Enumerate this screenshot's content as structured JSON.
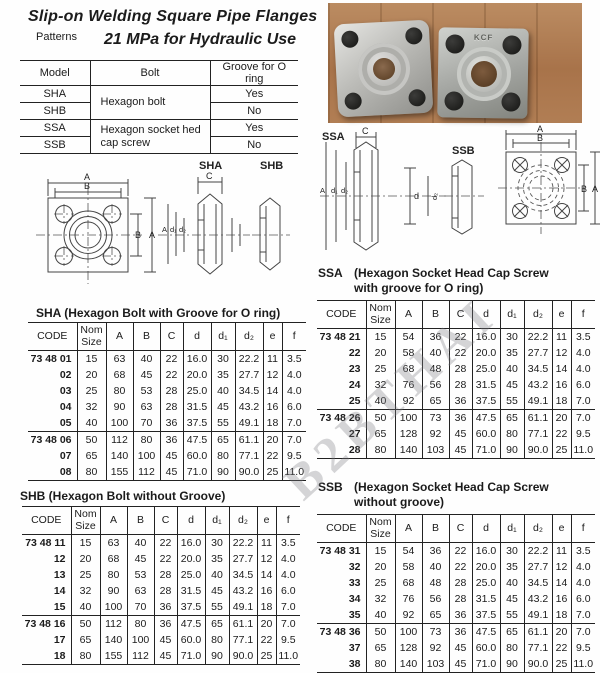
{
  "header": {
    "title_line1": "Slip-on Welding Square Pipe Flanges",
    "patterns_label": "Patterns",
    "title_line2": "21 MPa for Hydraulic Use"
  },
  "patterns_table": {
    "col_model": "Model",
    "col_bolt": "Bolt",
    "col_groove": "Groove for O ring",
    "models": [
      "SHA",
      "SHB",
      "SSA",
      "SSB"
    ],
    "bolt_hexagon": "Hexagon bolt",
    "bolt_socket_line1": "Hexagon socket hed",
    "bolt_socket_line2": "cap screw",
    "groove": [
      "Yes",
      "No",
      "Yes",
      "No"
    ]
  },
  "photo": {
    "marking": "KCF"
  },
  "diagram_left": {
    "sha": "SHA",
    "shb": "SHB",
    "a": "A",
    "b": "B",
    "c": "C",
    "b_right": "B",
    "a_right": "A",
    "sec_a": "A",
    "sec_d1": "d₁",
    "sec_d2": "d₂"
  },
  "diagram_right": {
    "ssa": "SSA",
    "ssb": "SSB",
    "c": "C",
    "a": "A",
    "d1": "d₁",
    "d2": "d₂",
    "d": "d",
    "d2r": "d₂",
    "fa": "A",
    "fb": "B",
    "fb_right": "B",
    "fa_right": "A"
  },
  "table_header": [
    "CODE",
    "Nom Size",
    "A",
    "B",
    "C",
    "d",
    "d₁",
    "d₂",
    "e",
    "f"
  ],
  "sha_table": {
    "title": "SHA (Hexagon Bolt with Groove for O ring)",
    "rows": [
      [
        "73 48 01",
        "15",
        "63",
        "40",
        "22",
        "16.0",
        "30",
        "22.2",
        "11",
        "3.5"
      ],
      [
        "02",
        "20",
        "68",
        "45",
        "22",
        "20.0",
        "35",
        "27.7",
        "12",
        "4.0"
      ],
      [
        "03",
        "25",
        "80",
        "53",
        "28",
        "25.0",
        "40",
        "34.5",
        "14",
        "4.0"
      ],
      [
        "04",
        "32",
        "90",
        "63",
        "28",
        "31.5",
        "45",
        "43.2",
        "16",
        "6.0"
      ],
      [
        "05",
        "40",
        "100",
        "70",
        "36",
        "37.5",
        "55",
        "49.1",
        "18",
        "7.0"
      ],
      [
        "73 48 06",
        "50",
        "112",
        "80",
        "36",
        "47.5",
        "65",
        "61.1",
        "20",
        "7.0"
      ],
      [
        "07",
        "65",
        "140",
        "100",
        "45",
        "60.0",
        "80",
        "77.1",
        "22",
        "9.5"
      ],
      [
        "08",
        "80",
        "155",
        "112",
        "45",
        "71.0",
        "90",
        "90.0",
        "25",
        "11.0"
      ]
    ]
  },
  "ssa_table": {
    "label": "SSA",
    "title_line1": "(Hexagon Socket Head Cap Screw",
    "title_line2": "with groove for O ring)",
    "rows": [
      [
        "73 48 21",
        "15",
        "54",
        "36",
        "22",
        "16.0",
        "30",
        "22.2",
        "11",
        "3.5"
      ],
      [
        "22",
        "20",
        "58",
        "40",
        "22",
        "20.0",
        "35",
        "27.7",
        "12",
        "4.0"
      ],
      [
        "23",
        "25",
        "68",
        "48",
        "28",
        "25.0",
        "40",
        "34.5",
        "14",
        "4.0"
      ],
      [
        "24",
        "32",
        "76",
        "56",
        "28",
        "31.5",
        "45",
        "43.2",
        "16",
        "6.0"
      ],
      [
        "25",
        "40",
        "92",
        "65",
        "36",
        "37.5",
        "55",
        "49.1",
        "18",
        "7.0"
      ],
      [
        "73 48 26",
        "50",
        "100",
        "73",
        "36",
        "47.5",
        "65",
        "61.1",
        "20",
        "7.0"
      ],
      [
        "27",
        "65",
        "128",
        "92",
        "45",
        "60.0",
        "80",
        "77.1",
        "22",
        "9.5"
      ],
      [
        "28",
        "80",
        "140",
        "103",
        "45",
        "71.0",
        "90",
        "90.0",
        "25",
        "11.0"
      ]
    ]
  },
  "shb_table": {
    "title": "SHB (Hexagon Bolt without Groove)",
    "rows": [
      [
        "73 48 11",
        "15",
        "63",
        "40",
        "22",
        "16.0",
        "30",
        "22.2",
        "11",
        "3.5"
      ],
      [
        "12",
        "20",
        "68",
        "45",
        "22",
        "20.0",
        "35",
        "27.7",
        "12",
        "4.0"
      ],
      [
        "13",
        "25",
        "80",
        "53",
        "28",
        "25.0",
        "40",
        "34.5",
        "14",
        "4.0"
      ],
      [
        "14",
        "32",
        "90",
        "63",
        "28",
        "31.5",
        "45",
        "43.2",
        "16",
        "6.0"
      ],
      [
        "15",
        "40",
        "100",
        "70",
        "36",
        "37.5",
        "55",
        "49.1",
        "18",
        "7.0"
      ],
      [
        "73 48 16",
        "50",
        "112",
        "80",
        "36",
        "47.5",
        "65",
        "61.1",
        "20",
        "7.0"
      ],
      [
        "17",
        "65",
        "140",
        "100",
        "45",
        "60.0",
        "80",
        "77.1",
        "22",
        "9.5"
      ],
      [
        "18",
        "80",
        "155",
        "112",
        "45",
        "71.0",
        "90",
        "90.0",
        "25",
        "11.0"
      ]
    ]
  },
  "ssb_table": {
    "label": "SSB",
    "title_line1": "(Hexagon Socket Head Cap Screw",
    "title_line2": "without groove)",
    "rows": [
      [
        "73 48 31",
        "15",
        "54",
        "36",
        "22",
        "16.0",
        "30",
        "22.2",
        "11",
        "3.5"
      ],
      [
        "32",
        "20",
        "58",
        "40",
        "22",
        "20.0",
        "35",
        "27.7",
        "12",
        "4.0"
      ],
      [
        "33",
        "25",
        "68",
        "48",
        "28",
        "25.0",
        "40",
        "34.5",
        "14",
        "4.0"
      ],
      [
        "34",
        "32",
        "76",
        "56",
        "28",
        "31.5",
        "45",
        "43.2",
        "16",
        "6.0"
      ],
      [
        "35",
        "40",
        "92",
        "65",
        "36",
        "37.5",
        "55",
        "49.1",
        "18",
        "7.0"
      ],
      [
        "73 48 36",
        "50",
        "100",
        "73",
        "36",
        "47.5",
        "65",
        "61.1",
        "20",
        "7.0"
      ],
      [
        "37",
        "65",
        "128",
        "92",
        "45",
        "60.0",
        "80",
        "77.1",
        "22",
        "9.5"
      ],
      [
        "38",
        "80",
        "140",
        "103",
        "45",
        "71.0",
        "90",
        "90.0",
        "25",
        "11.0"
      ]
    ]
  },
  "watermark": {
    "text": "B2BTHAI"
  }
}
